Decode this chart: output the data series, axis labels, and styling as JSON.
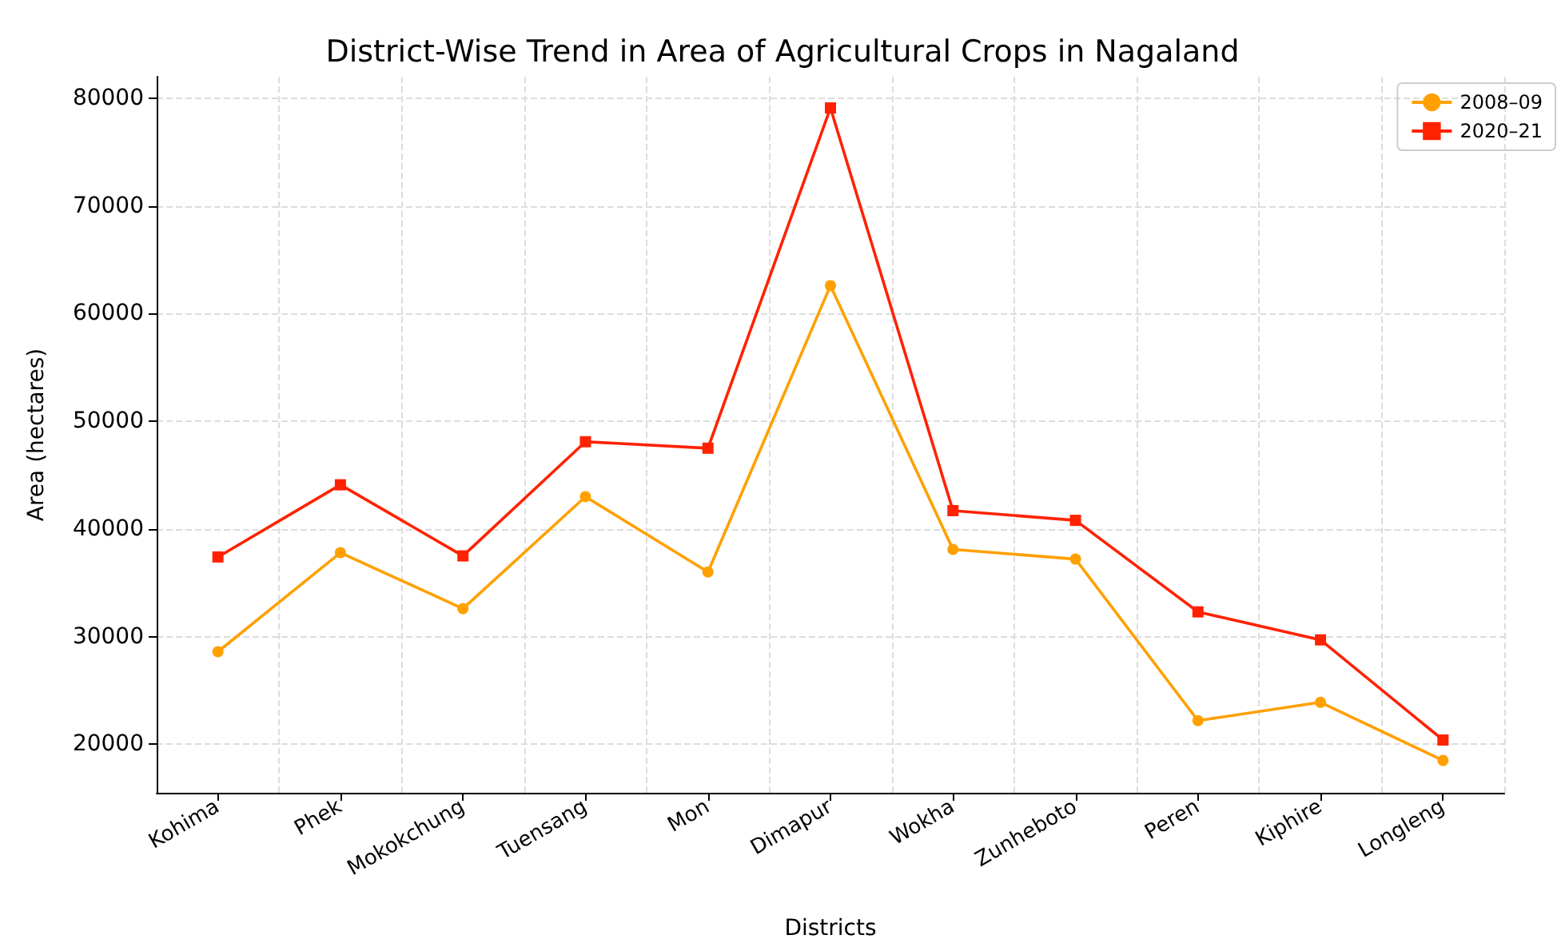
{
  "chart_data": {
    "type": "line",
    "title": "District-Wise Trend in Area of Agricultural Crops in Nagaland",
    "xlabel": "Districts",
    "ylabel": "Area (hectares)",
    "categories": [
      "Kohima",
      "Phek",
      "Mokokchung",
      "Tuensang",
      "Mon",
      "Dimapur",
      "Wokha",
      "Zunheboto",
      "Peren",
      "Kiphire",
      "Longleng"
    ],
    "series": [
      {
        "name": "2008–09",
        "color": "#ffa000",
        "marker": "circle",
        "values": [
          28600,
          37800,
          32600,
          43000,
          36000,
          62600,
          38100,
          37200,
          22200,
          23900,
          18500
        ]
      },
      {
        "name": "2020–21",
        "color": "#ff2200",
        "marker": "square",
        "values": [
          37400,
          44100,
          37500,
          48100,
          47500,
          79100,
          41700,
          40800,
          32300,
          29700,
          20400
        ]
      }
    ],
    "ylim": [
      15500,
      82000
    ],
    "yticks": [
      20000,
      30000,
      40000,
      50000,
      60000,
      70000,
      80000
    ],
    "grid": true,
    "legend": "top right",
    "line_style": "solid"
  }
}
